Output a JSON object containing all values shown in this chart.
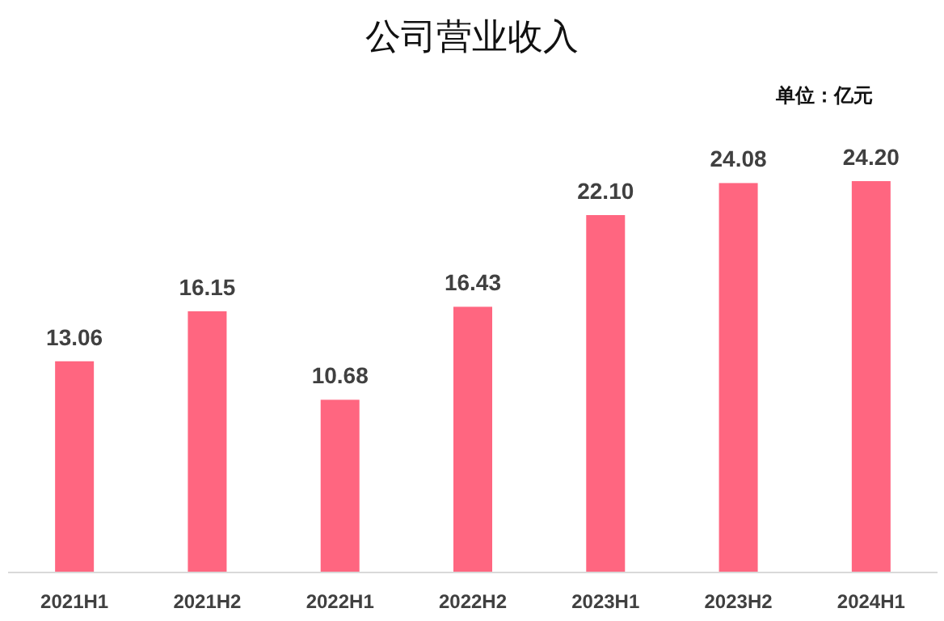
{
  "chart_data": {
    "type": "bar",
    "title": "公司营业收入",
    "annotations": [
      "单位：亿元"
    ],
    "categories": [
      "2021H1",
      "2021H2",
      "2022H1",
      "2022H2",
      "2023H1",
      "2023H2",
      "2024H1"
    ],
    "values": [
      13.06,
      16.15,
      10.68,
      16.43,
      22.1,
      24.08,
      24.2
    ],
    "value_labels": [
      "13.06",
      "16.15",
      "10.68",
      "16.43",
      "22.10",
      "24.08",
      "24.20"
    ],
    "color": "#ff6680",
    "grid": false
  }
}
